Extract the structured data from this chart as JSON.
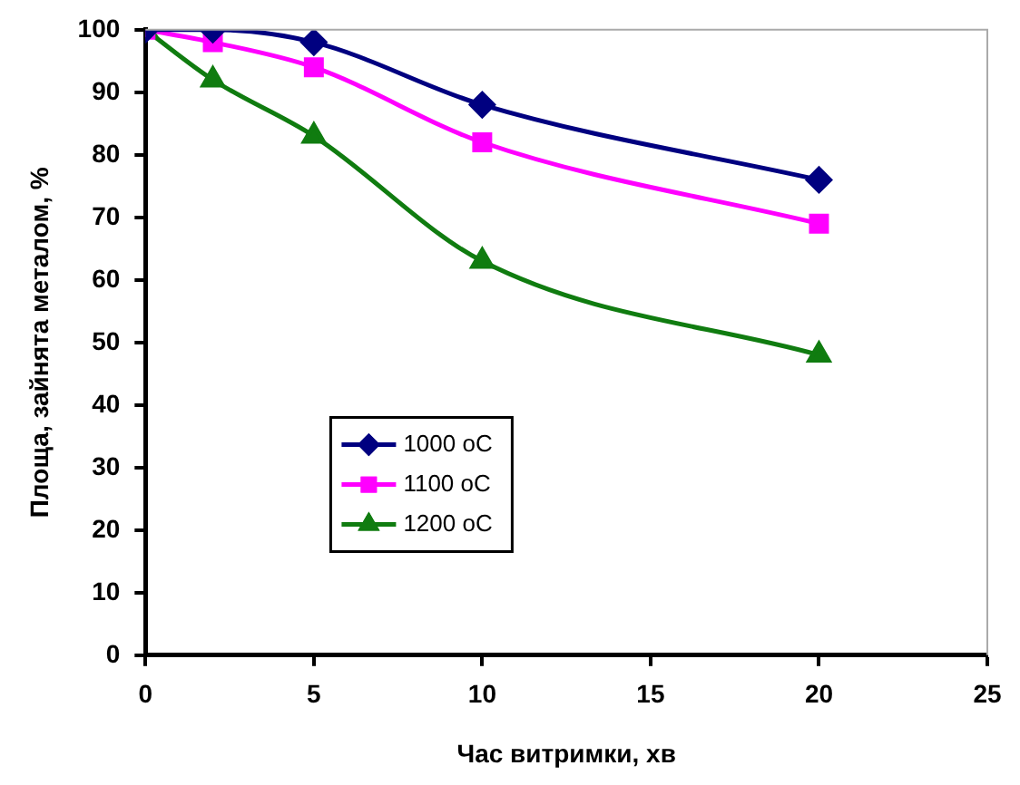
{
  "chart_data": {
    "type": "line",
    "xlabel": "Час витримки, хв",
    "ylabel": "Площа, зайнята металом, %",
    "x": [
      0,
      2,
      5,
      10,
      20
    ],
    "xlim": [
      0,
      25
    ],
    "xticks": [
      0,
      5,
      10,
      15,
      20,
      25
    ],
    "ylim": [
      0,
      100
    ],
    "yticks": [
      0,
      10,
      20,
      30,
      40,
      50,
      60,
      70,
      80,
      90,
      100
    ],
    "grid": false,
    "legend": "left",
    "series": [
      {
        "name": "1000 oC",
        "color": "#000080",
        "marker": "diamond",
        "values": [
          100,
          100,
          98,
          88,
          76
        ]
      },
      {
        "name": "1100 oC",
        "color": "#ff00ff",
        "marker": "square",
        "values": [
          100,
          98,
          94,
          82,
          69
        ]
      },
      {
        "name": "1200 oC",
        "color": "#107c10",
        "marker": "triangle",
        "values": [
          100,
          92,
          83,
          63,
          48
        ]
      }
    ]
  }
}
